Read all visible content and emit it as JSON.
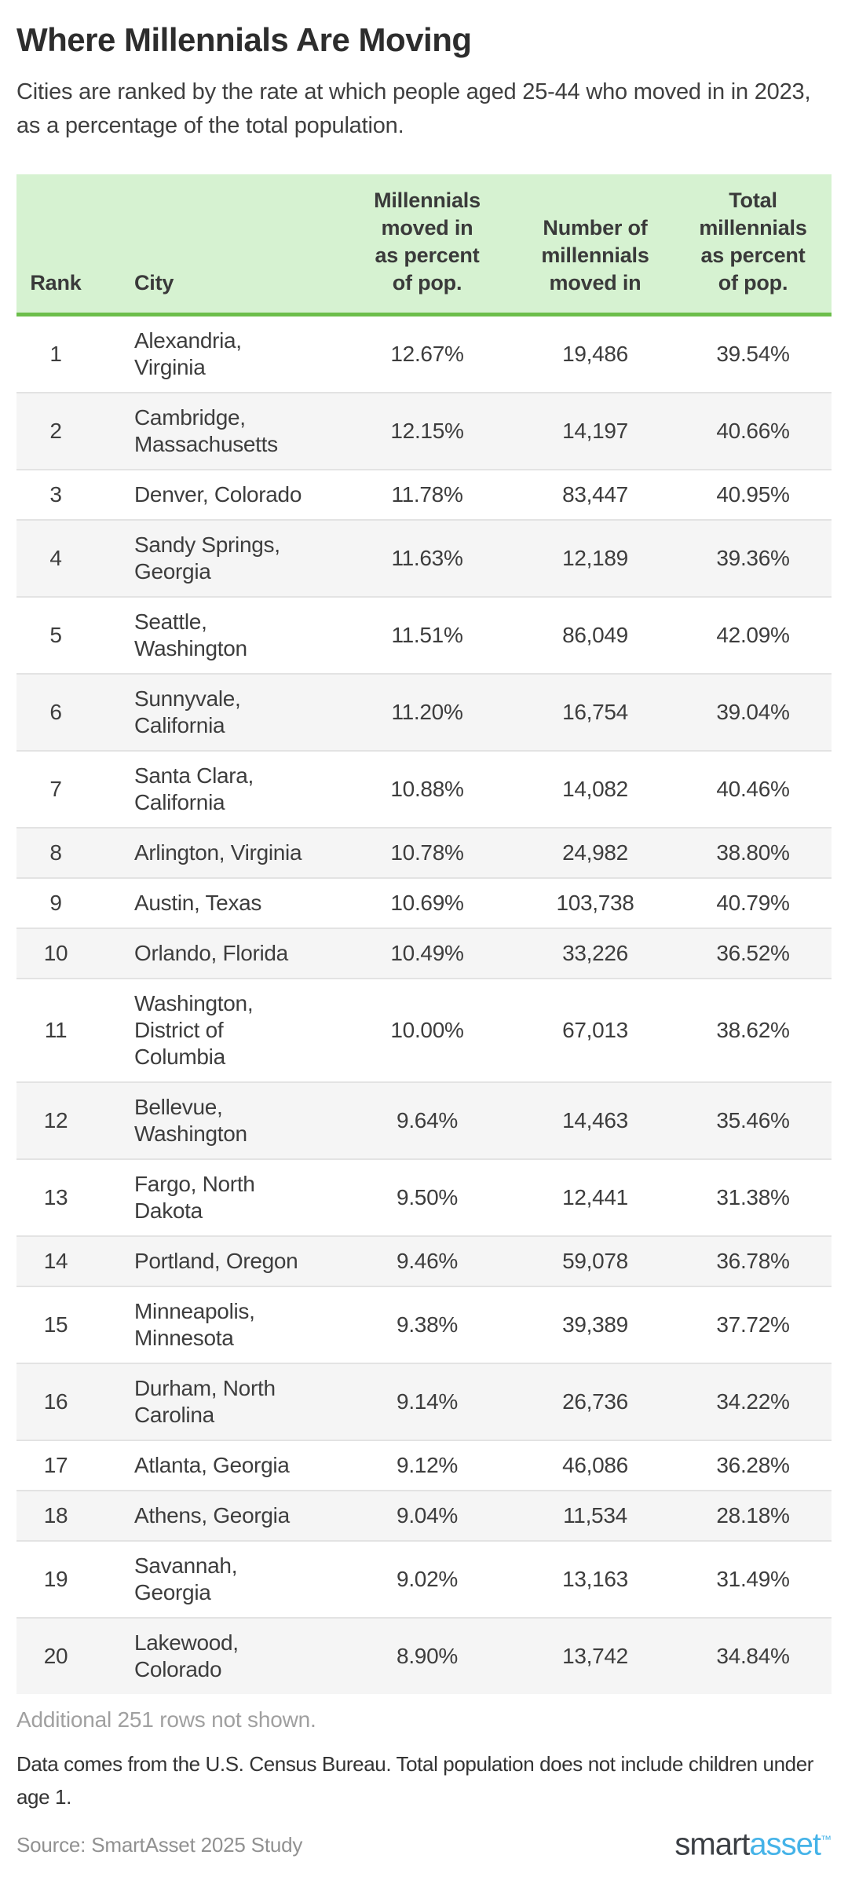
{
  "page": {
    "title": "Where Millennials Are Moving",
    "subtitle": "Cities are ranked by the rate at which people aged 25-44 who moved in in 2023, as a percentage of the total population.",
    "additional_note": "Additional 251 rows not shown.",
    "data_note": "Data comes from the U.S. Census Bureau. Total population does not include children under age 1.",
    "source": "Source: SmartAsset 2025 Study",
    "logo": {
      "part1": "smart",
      "part2": "asset",
      "tm": "™"
    }
  },
  "colors": {
    "header_bg": "#d6f2d1",
    "header_underline": "#6cbe4b",
    "row_alt_bg": "#f5f5f5",
    "row_divider": "#e3e3e3",
    "muted_text": "#a0a0a0",
    "body_text": "#3d3d3d",
    "logo_dark": "#3b3f44",
    "logo_blue": "#45b3e8"
  },
  "chart_data": {
    "type": "table",
    "title": "Where Millennials Are Moving",
    "subtitle": "Cities are ranked by the rate at which people aged 25-44 who moved in in 2023, as a percentage of the total population.",
    "columns": [
      {
        "key": "rank",
        "label": "Rank"
      },
      {
        "key": "city",
        "label": "City"
      },
      {
        "key": "moved_pct",
        "label": "Millennials\nmoved in\nas percent\nof pop."
      },
      {
        "key": "moved_num",
        "label": "Number of\nmillennials\nmoved in"
      },
      {
        "key": "total_pct",
        "label": "Total\nmillennials\nas percent\nof pop."
      }
    ],
    "rows": [
      {
        "rank": "1",
        "city": "Alexandria,\nVirginia",
        "moved_pct": "12.67%",
        "moved_num": "19,486",
        "total_pct": "39.54%"
      },
      {
        "rank": "2",
        "city": "Cambridge,\nMassachusetts",
        "moved_pct": "12.15%",
        "moved_num": "14,197",
        "total_pct": "40.66%"
      },
      {
        "rank": "3",
        "city": "Denver, Colorado",
        "moved_pct": "11.78%",
        "moved_num": "83,447",
        "total_pct": "40.95%"
      },
      {
        "rank": "4",
        "city": "Sandy Springs,\nGeorgia",
        "moved_pct": "11.63%",
        "moved_num": "12,189",
        "total_pct": "39.36%"
      },
      {
        "rank": "5",
        "city": "Seattle,\nWashington",
        "moved_pct": "11.51%",
        "moved_num": "86,049",
        "total_pct": "42.09%"
      },
      {
        "rank": "6",
        "city": "Sunnyvale,\nCalifornia",
        "moved_pct": "11.20%",
        "moved_num": "16,754",
        "total_pct": "39.04%"
      },
      {
        "rank": "7",
        "city": "Santa Clara,\nCalifornia",
        "moved_pct": "10.88%",
        "moved_num": "14,082",
        "total_pct": "40.46%"
      },
      {
        "rank": "8",
        "city": "Arlington, Virginia",
        "moved_pct": "10.78%",
        "moved_num": "24,982",
        "total_pct": "38.80%"
      },
      {
        "rank": "9",
        "city": "Austin, Texas",
        "moved_pct": "10.69%",
        "moved_num": "103,738",
        "total_pct": "40.79%"
      },
      {
        "rank": "10",
        "city": "Orlando, Florida",
        "moved_pct": "10.49%",
        "moved_num": "33,226",
        "total_pct": "36.52%"
      },
      {
        "rank": "11",
        "city": "Washington,\nDistrict of\nColumbia",
        "moved_pct": "10.00%",
        "moved_num": "67,013",
        "total_pct": "38.62%"
      },
      {
        "rank": "12",
        "city": "Bellevue,\nWashington",
        "moved_pct": "9.64%",
        "moved_num": "14,463",
        "total_pct": "35.46%"
      },
      {
        "rank": "13",
        "city": "Fargo, North\nDakota",
        "moved_pct": "9.50%",
        "moved_num": "12,441",
        "total_pct": "31.38%"
      },
      {
        "rank": "14",
        "city": "Portland, Oregon",
        "moved_pct": "9.46%",
        "moved_num": "59,078",
        "total_pct": "36.78%"
      },
      {
        "rank": "15",
        "city": "Minneapolis,\nMinnesota",
        "moved_pct": "9.38%",
        "moved_num": "39,389",
        "total_pct": "37.72%"
      },
      {
        "rank": "16",
        "city": "Durham, North\nCarolina",
        "moved_pct": "9.14%",
        "moved_num": "26,736",
        "total_pct": "34.22%"
      },
      {
        "rank": "17",
        "city": "Atlanta, Georgia",
        "moved_pct": "9.12%",
        "moved_num": "46,086",
        "total_pct": "36.28%"
      },
      {
        "rank": "18",
        "city": "Athens, Georgia",
        "moved_pct": "9.04%",
        "moved_num": "11,534",
        "total_pct": "28.18%"
      },
      {
        "rank": "19",
        "city": "Savannah,\nGeorgia",
        "moved_pct": "9.02%",
        "moved_num": "13,163",
        "total_pct": "31.49%"
      },
      {
        "rank": "20",
        "city": "Lakewood,\nColorado",
        "moved_pct": "8.90%",
        "moved_num": "13,742",
        "total_pct": "34.84%"
      }
    ]
  }
}
